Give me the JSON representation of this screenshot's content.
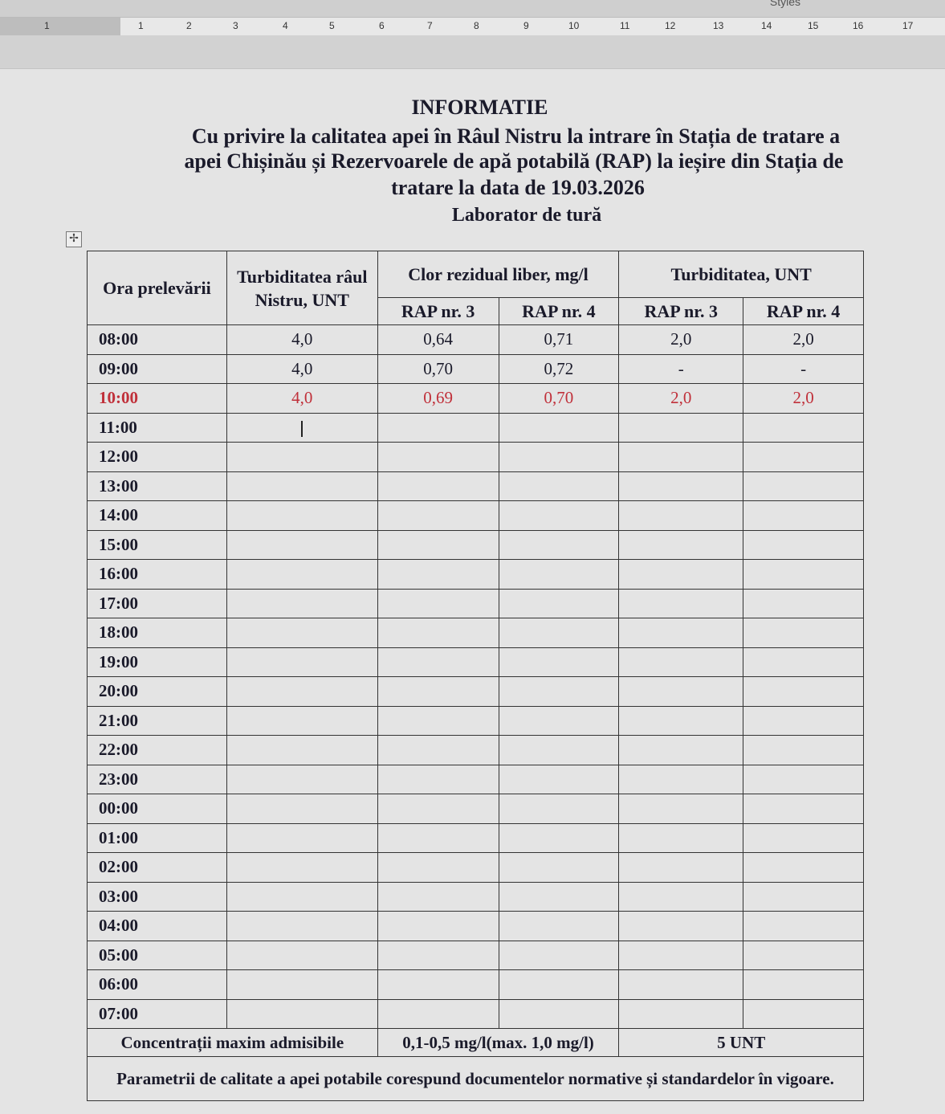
{
  "app": {
    "styles_label": "Styles"
  },
  "ruler": {
    "labels": [
      "1",
      "1",
      "2",
      "3",
      "4",
      "5",
      "6",
      "7",
      "8",
      "9",
      "10",
      "11",
      "12",
      "13",
      "14",
      "15",
      "16",
      "17"
    ]
  },
  "document": {
    "title": "INFORMATIE",
    "subtitle_lines": [
      "Cu privire la calitatea apei în Râul Nistru la intrare în Stația de tratare a",
      "apei Chișinău și Rezervoarele de apă potabilă (RAP) la ieșire din Stația de",
      "tratare la data de 19.03.2026"
    ],
    "lab": "Laborator de tură",
    "table": {
      "headers": {
        "time": "Ora prelevării",
        "turb_river": "Turbiditatea râul Nistru, UNT",
        "chlorine": "Clor rezidual liber, mg/l",
        "turbidity": "Turbiditatea, UNT",
        "rap3": "RAP nr. 3",
        "rap4": "RAP nr. 4"
      },
      "rows": [
        {
          "time": "08:00",
          "river": "4,0",
          "cl3": "0,64",
          "cl4": "0,71",
          "t3": "2,0",
          "t4": "2,0"
        },
        {
          "time": "09:00",
          "river": "4,0",
          "cl3": "0,70",
          "cl4": "0,72",
          "t3": "-",
          "t4": "-"
        },
        {
          "time": "10:00",
          "river": "4,0",
          "cl3": "0,69",
          "cl4": "0,70",
          "t3": "2,0",
          "t4": "2,0",
          "highlight": true
        },
        {
          "time": "11:00"
        },
        {
          "time": "12:00"
        },
        {
          "time": "13:00"
        },
        {
          "time": "14:00"
        },
        {
          "time": "15:00"
        },
        {
          "time": "16:00"
        },
        {
          "time": "17:00"
        },
        {
          "time": "18:00"
        },
        {
          "time": "19:00"
        },
        {
          "time": "20:00"
        },
        {
          "time": "21:00"
        },
        {
          "time": "22:00"
        },
        {
          "time": "23:00"
        },
        {
          "time": "00:00"
        },
        {
          "time": "01:00"
        },
        {
          "time": "02:00"
        },
        {
          "time": "03:00"
        },
        {
          "time": "04:00"
        },
        {
          "time": "05:00"
        },
        {
          "time": "06:00"
        },
        {
          "time": "07:00"
        }
      ],
      "limits": {
        "label": "Concentrații maxim admisibile",
        "chlorine": "0,1-0,5 mg/l(max. 1,0 mg/l)",
        "turbidity": "5 UNT"
      },
      "conclusion": "Parametrii de calitate a apei potabile corespund documentelor normative și standardelor în vigoare."
    },
    "colors": {
      "highlight": "#c0303a"
    }
  }
}
